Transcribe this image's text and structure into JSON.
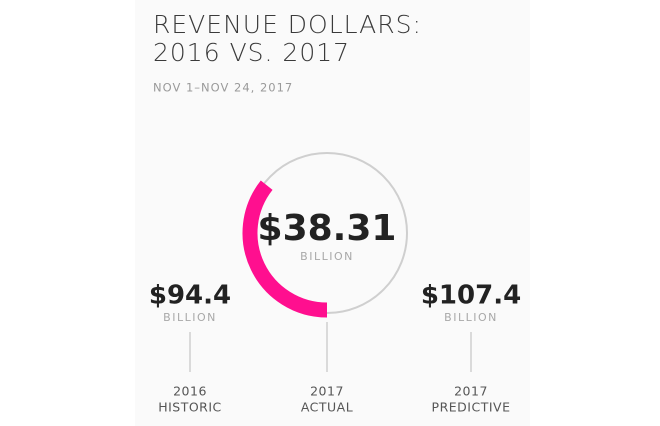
{
  "chart_data": {
    "type": "ring",
    "title": [
      "REVENUE DOLLARS:",
      "2016 VS. 2017"
    ],
    "subtitle": "NOV 1–NOV 24, 2017",
    "color": "#ff0f8f",
    "items": [
      {
        "label": [
          "2016",
          "HISTORIC"
        ],
        "value": 94.4,
        "value_label": "$94.4",
        "unit": "BILLION"
      },
      {
        "label": [
          "2017",
          "ACTUAL"
        ],
        "value": 38.31,
        "value_label": "$38.31",
        "unit": "BILLION"
      },
      {
        "label": [
          "2017",
          "PREDICTIVE"
        ],
        "value": 107.4,
        "value_label": "$107.4",
        "unit": "BILLION"
      }
    ]
  }
}
